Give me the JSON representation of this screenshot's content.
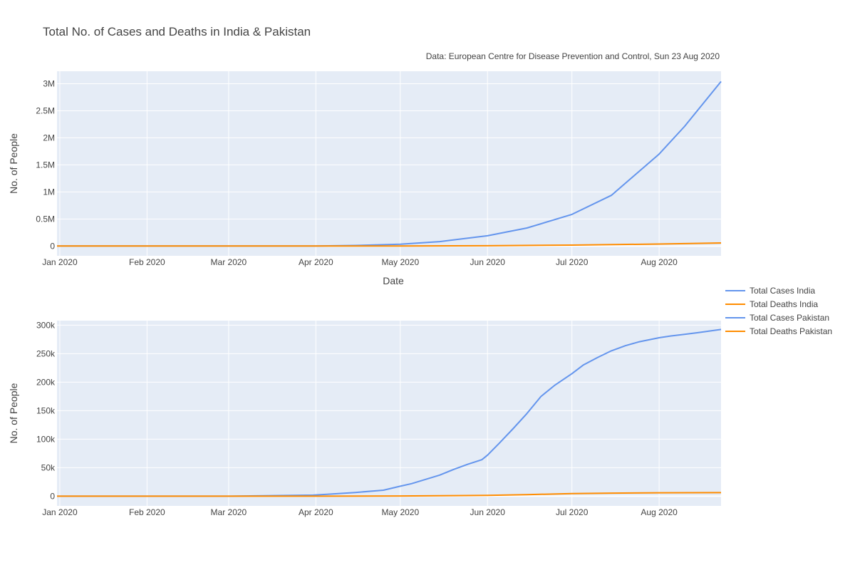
{
  "chart_data": {
    "type": "line",
    "title": "Total No. of Cases and Deaths in India & Pakistan",
    "subtitle": "Data: European Centre for Disease Prevention and Control, Sun 23 Aug 2020",
    "colors": {
      "cases": "#6495ED",
      "deaths": "#FF8C00",
      "plot_bg": "#E5ECF6",
      "grid": "#ffffff"
    },
    "legend": {
      "placement": "right",
      "entries": [
        {
          "name": "Total Cases India",
          "color": "#6495ED"
        },
        {
          "name": "Total Deaths India",
          "color": "#FF8C00"
        },
        {
          "name": "Total Cases Pakistan",
          "color": "#6495ED"
        },
        {
          "name": "Total Deaths Pakistan",
          "color": "#FF8C00"
        }
      ]
    },
    "x_ticks": [
      {
        "date": "2020-01-01",
        "label": "Jan 2020"
      },
      {
        "date": "2020-02-01",
        "label": "Feb 2020"
      },
      {
        "date": "2020-03-01",
        "label": "Mar 2020"
      },
      {
        "date": "2020-04-01",
        "label": "Apr 2020"
      },
      {
        "date": "2020-05-01",
        "label": "May 2020"
      },
      {
        "date": "2020-06-01",
        "label": "Jun 2020"
      },
      {
        "date": "2020-07-01",
        "label": "Jul 2020"
      },
      {
        "date": "2020-08-01",
        "label": "Aug 2020"
      }
    ],
    "xlim": [
      "2019-12-31",
      "2020-08-23"
    ],
    "subplots": [
      {
        "country": "India",
        "xlabel": "Date",
        "ylabel": "No. of People",
        "ylim": [
          -180000,
          3230000
        ],
        "y_ticks": [
          {
            "value": 0,
            "label": "0"
          },
          {
            "value": 500000,
            "label": "0.5M"
          },
          {
            "value": 1000000,
            "label": "1M"
          },
          {
            "value": 1500000,
            "label": "1.5M"
          },
          {
            "value": 2000000,
            "label": "2M"
          },
          {
            "value": 2500000,
            "label": "2.5M"
          },
          {
            "value": 3000000,
            "label": "3M"
          }
        ],
        "series": [
          {
            "name": "Total Cases India",
            "color": "#6495ED",
            "x": [
              "2019-12-31",
              "2020-03-01",
              "2020-04-01",
              "2020-04-15",
              "2020-05-01",
              "2020-05-15",
              "2020-06-01",
              "2020-06-15",
              "2020-07-01",
              "2020-07-15",
              "2020-08-01",
              "2020-08-10",
              "2020-08-15",
              "2020-08-23"
            ],
            "y": [
              0,
              3,
              1900,
              11000,
              35000,
              82000,
              190000,
              333000,
              585000,
              936000,
              1700000,
              2210000,
              2530000,
              3040000
            ]
          },
          {
            "name": "Total Deaths India",
            "color": "#FF8C00",
            "x": [
              "2019-12-31",
              "2020-04-01",
              "2020-05-01",
              "2020-06-01",
              "2020-07-01",
              "2020-08-01",
              "2020-08-23"
            ],
            "y": [
              0,
              50,
              1150,
              5400,
              17400,
              37400,
              56700
            ]
          }
        ]
      },
      {
        "country": "Pakistan",
        "xlabel": "",
        "ylabel": "No. of People",
        "ylim": [
          -17000,
          308000
        ],
        "y_ticks": [
          {
            "value": 0,
            "label": "0"
          },
          {
            "value": 50000,
            "label": "50k"
          },
          {
            "value": 100000,
            "label": "100k"
          },
          {
            "value": 150000,
            "label": "150k"
          },
          {
            "value": 200000,
            "label": "200k"
          },
          {
            "value": 250000,
            "label": "250k"
          },
          {
            "value": 300000,
            "label": "300k"
          }
        ],
        "series": [
          {
            "name": "Total Cases Pakistan",
            "color": "#6495ED",
            "x": [
              "2019-12-31",
              "2020-03-01",
              "2020-03-31",
              "2020-04-05",
              "2020-04-15",
              "2020-04-25",
              "2020-05-01",
              "2020-05-05",
              "2020-05-15",
              "2020-05-20",
              "2020-05-25",
              "2020-05-30",
              "2020-06-01",
              "2020-06-05",
              "2020-06-10",
              "2020-06-15",
              "2020-06-20",
              "2020-06-25",
              "2020-07-01",
              "2020-07-05",
              "2020-07-10",
              "2020-07-15",
              "2020-07-20",
              "2020-07-25",
              "2020-08-01",
              "2020-08-05",
              "2020-08-10",
              "2020-08-15",
              "2020-08-23"
            ],
            "y": [
              0,
              0,
              1900,
              3300,
              6500,
              10500,
              17500,
              22000,
              37000,
              47000,
              56000,
              64000,
              72000,
              92000,
              118000,
              145000,
              175000,
              195000,
              215000,
              230000,
              243000,
              255000,
              264000,
              271000,
              278000,
              281000,
              284000,
              287000,
              292500
            ]
          },
          {
            "name": "Total Deaths Pakistan",
            "color": "#FF8C00",
            "x": [
              "2019-12-31",
              "2020-04-01",
              "2020-05-01",
              "2020-05-20",
              "2020-06-01",
              "2020-06-15",
              "2020-07-01",
              "2020-07-15",
              "2020-08-01",
              "2020-08-23"
            ],
            "y": [
              0,
              30,
              380,
              950,
              1500,
              2800,
              4500,
              5400,
              6000,
              6250
            ]
          }
        ]
      }
    ]
  }
}
